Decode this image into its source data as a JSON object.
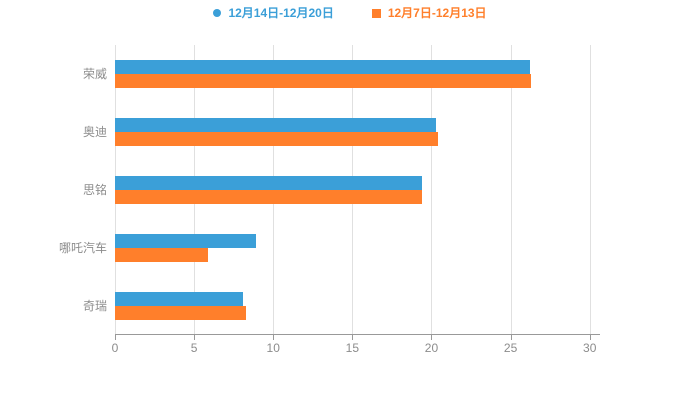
{
  "chart_data": {
    "type": "bar",
    "orientation": "horizontal",
    "title": "",
    "xlabel": "",
    "ylabel": "",
    "categories": [
      "荣威",
      "奥迪",
      "思铭",
      "哪吒汽车",
      "奇瑞"
    ],
    "series": [
      {
        "name": "12月14日-12月20日",
        "color": "#3b9fd8",
        "marker": "circle",
        "values": [
          26.2,
          20.3,
          19.4,
          8.9,
          8.1
        ]
      },
      {
        "name": "12月7日-12月13日",
        "color": "#ff7f2b",
        "marker": "square",
        "values": [
          26.3,
          20.4,
          19.4,
          5.9,
          8.3
        ]
      }
    ],
    "xlim": [
      0,
      30
    ],
    "x_axis_extent": 30.65,
    "x_ticks": [
      0,
      5,
      10,
      15,
      20,
      25,
      30
    ],
    "grid": true,
    "legend_position": "top"
  },
  "colors": {
    "background": "#ffffff",
    "axis_text": "#8c8c8c",
    "gridline": "#e0e0e0",
    "axis_line": "#999999"
  }
}
